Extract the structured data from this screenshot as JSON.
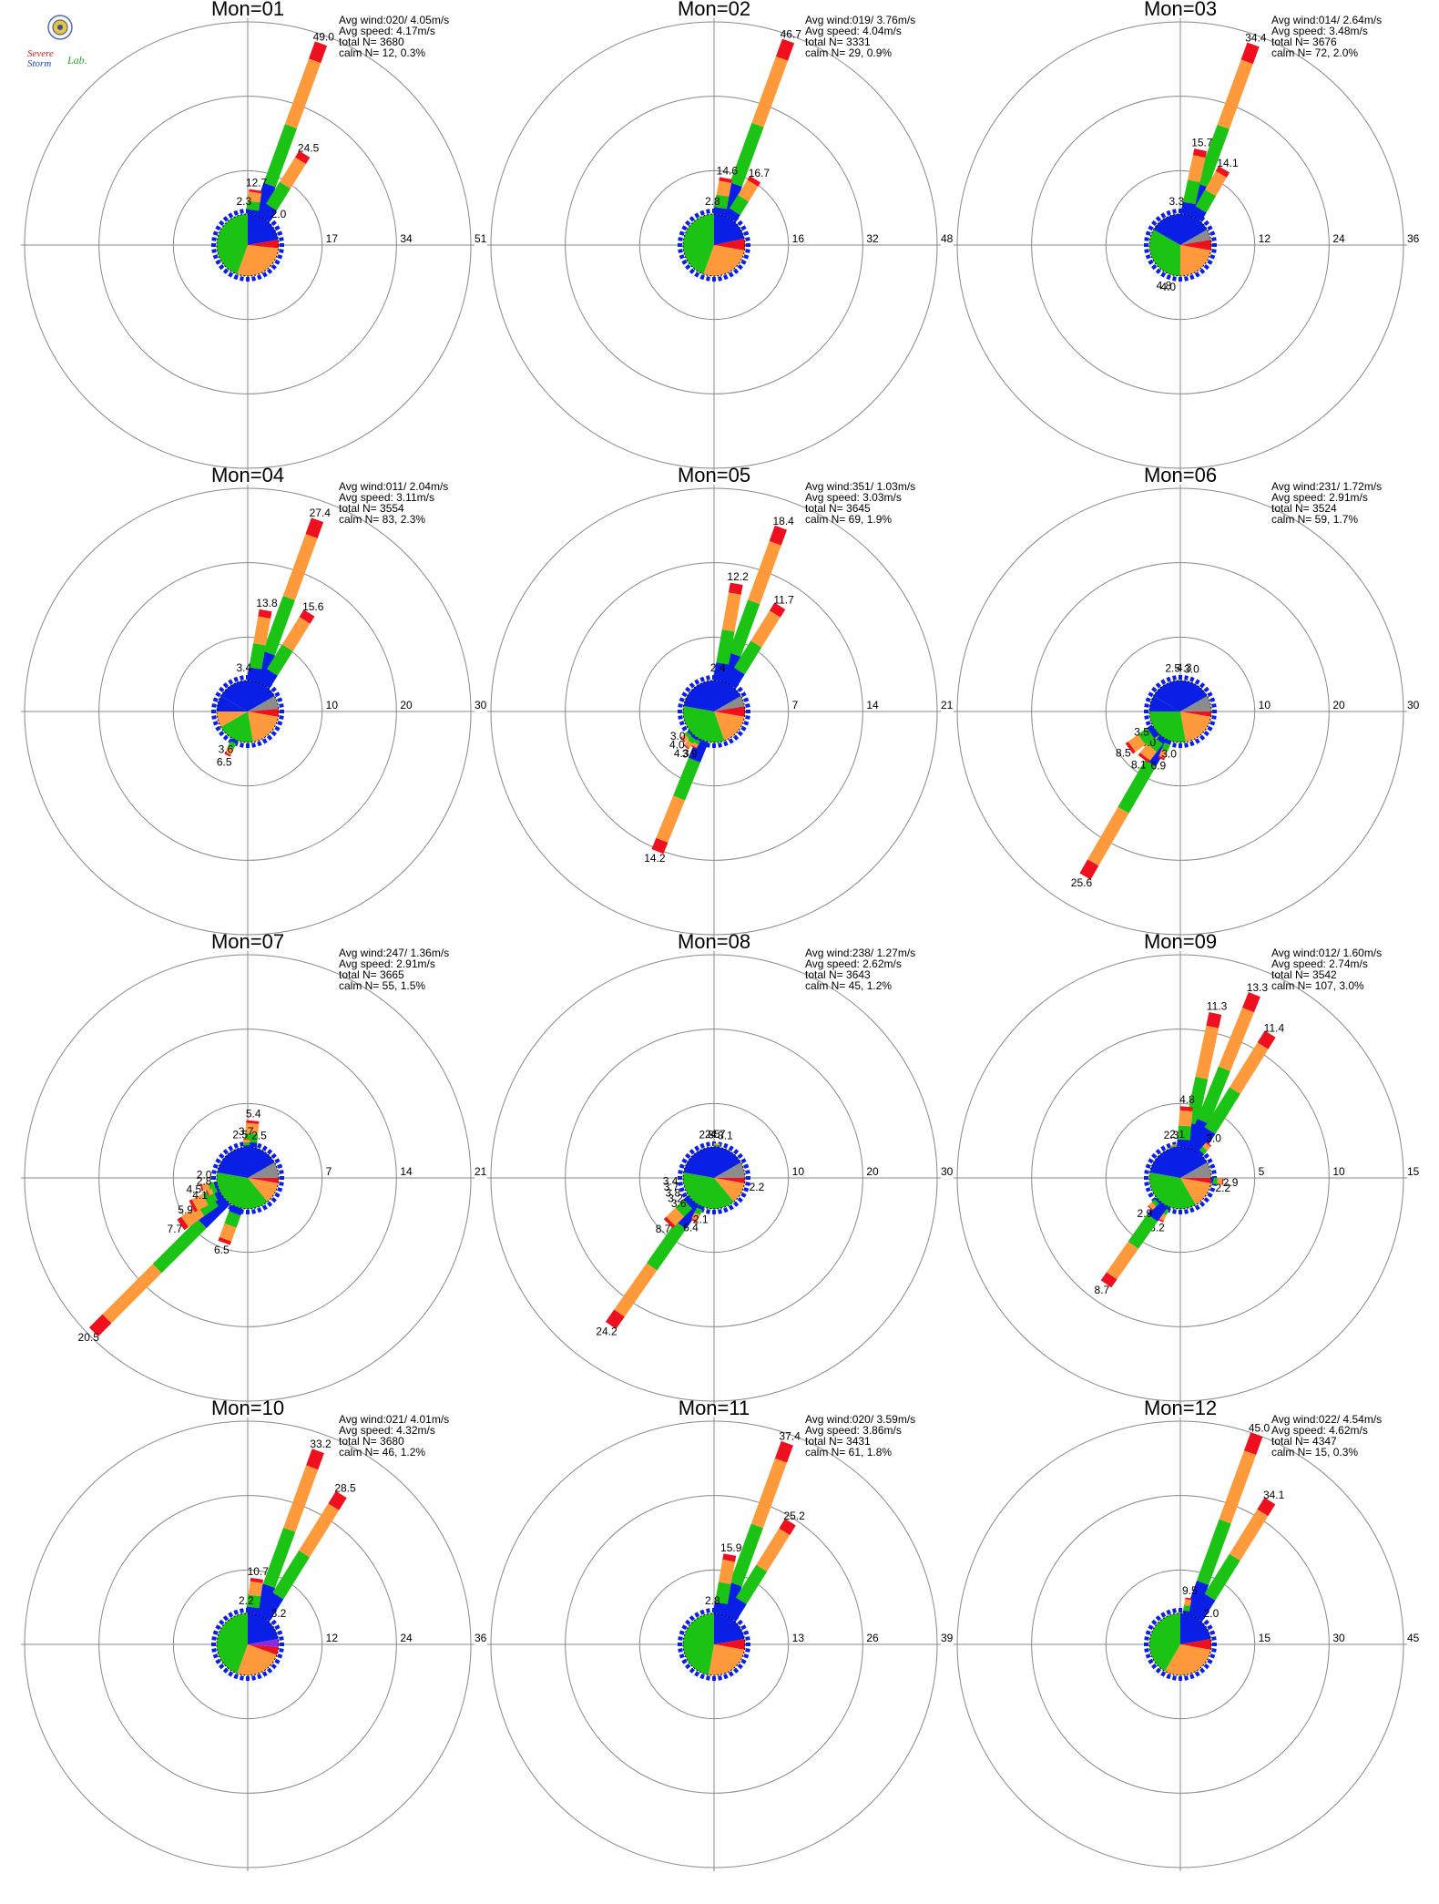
{
  "logo": {
    "line1": "Severe",
    "line2": "Storm",
    "line3": "Lab."
  },
  "colors": {
    "blue": "#0a1fe6",
    "green": "#1bc414",
    "orange": "#ff9a3c",
    "red": "#ee0f1f",
    "gray": "#8c8c8c",
    "purple": "#8a2be2"
  },
  "chart_data": [
    {
      "type": "windrose",
      "title": "Mon=01",
      "info": [
        "Avg wind:020/ 4.05m/s",
        "Avg speed: 4.17m/s",
        "total N=      3680",
        "calm N=     12,   0.3%"
      ],
      "ticks": [
        "17",
        "34",
        "51"
      ],
      "rmax": 51,
      "petals": [
        {
          "dir": 20,
          "v": 49.0,
          "label": "49.0"
        },
        {
          "dir": 32,
          "v": 24.5,
          "label": "24.5"
        },
        {
          "dir": 8,
          "v": 12.7,
          "label": "12.7"
        },
        {
          "dir": 355,
          "v": 2.3,
          "label": "2.3"
        },
        {
          "dir": 45,
          "v": 2.0,
          "label": "2.0"
        }
      ],
      "pie": [
        {
          "from": 0,
          "to": 80,
          "color": "blue"
        },
        {
          "from": 80,
          "to": 96,
          "color": "red"
        },
        {
          "from": 96,
          "to": 200,
          "color": "orange"
        },
        {
          "from": 200,
          "to": 360,
          "color": "green"
        }
      ]
    },
    {
      "type": "windrose",
      "title": "Mon=02",
      "info": [
        "Avg wind:019/ 3.76m/s",
        "Avg speed: 4.04m/s",
        "total N=      3331",
        "calm N=     29,   0.9%"
      ],
      "ticks": [
        "16",
        "32",
        "48"
      ],
      "rmax": 48,
      "petals": [
        {
          "dir": 20,
          "v": 46.7,
          "label": "46.7"
        },
        {
          "dir": 32,
          "v": 16.7,
          "label": "16.7"
        },
        {
          "dir": 10,
          "v": 14.6,
          "label": "14.6"
        },
        {
          "dir": 358,
          "v": 2.8,
          "label": "2.8"
        }
      ],
      "pie": [
        {
          "from": 0,
          "to": 78,
          "color": "blue"
        },
        {
          "from": 78,
          "to": 100,
          "color": "red"
        },
        {
          "from": 100,
          "to": 200,
          "color": "orange"
        },
        {
          "from": 200,
          "to": 360,
          "color": "green"
        }
      ]
    },
    {
      "type": "windrose",
      "title": "Mon=03",
      "info": [
        "Avg wind:014/ 2.64m/s",
        "Avg speed: 3.48m/s",
        "total N=      3676",
        "calm N=     72,   2.0%"
      ],
      "ticks": [
        "12",
        "24",
        "36"
      ],
      "rmax": 36,
      "petals": [
        {
          "dir": 20,
          "v": 34.4,
          "label": "34.4"
        },
        {
          "dir": 12,
          "v": 15.7,
          "label": "15.7"
        },
        {
          "dir": 30,
          "v": 14.1,
          "label": "14.1"
        },
        {
          "dir": 355,
          "v": 3.3,
          "label": "3.3"
        },
        {
          "dir": 202,
          "v": 4.8,
          "label": "4.8"
        },
        {
          "dir": 196,
          "v": 4.0,
          "label": "4.0"
        }
      ],
      "pie": [
        {
          "from": 0,
          "to": 60,
          "color": "blue"
        },
        {
          "from": 60,
          "to": 80,
          "color": "gray"
        },
        {
          "from": 80,
          "to": 100,
          "color": "red"
        },
        {
          "from": 100,
          "to": 180,
          "color": "orange"
        },
        {
          "from": 180,
          "to": 300,
          "color": "green"
        },
        {
          "from": 300,
          "to": 360,
          "color": "blue"
        }
      ]
    },
    {
      "type": "windrose",
      "title": "Mon=04",
      "info": [
        "Avg wind:011/ 2.04m/s",
        "Avg speed: 3.11m/s",
        "total N=      3554",
        "calm N=     83,   2.3%"
      ],
      "ticks": [
        "10",
        "20",
        "30"
      ],
      "rmax": 30,
      "petals": [
        {
          "dir": 20,
          "v": 27.4,
          "label": "27.4"
        },
        {
          "dir": 10,
          "v": 13.8,
          "label": "13.8"
        },
        {
          "dir": 32,
          "v": 15.6,
          "label": "15.6"
        },
        {
          "dir": 355,
          "v": 3.4,
          "label": "3.4"
        },
        {
          "dir": 205,
          "v": 6.5,
          "label": "6.5"
        },
        {
          "dir": 210,
          "v": 3.6,
          "label": "3.6"
        }
      ],
      "pie": [
        {
          "from": 300,
          "to": 420,
          "color": "blue"
        },
        {
          "from": 60,
          "to": 85,
          "color": "gray"
        },
        {
          "from": 85,
          "to": 100,
          "color": "red"
        },
        {
          "from": 100,
          "to": 170,
          "color": "orange"
        },
        {
          "from": 170,
          "to": 240,
          "color": "green"
        },
        {
          "from": 240,
          "to": 270,
          "color": "orange"
        },
        {
          "from": 270,
          "to": 300,
          "color": "blue"
        }
      ]
    },
    {
      "type": "windrose",
      "title": "Mon=05",
      "info": [
        "Avg wind:351/ 1.03m/s",
        "Avg speed: 3.03m/s",
        "total N=      3645",
        "calm N=     69,   1.9%"
      ],
      "ticks": [
        "7",
        "14",
        "21"
      ],
      "rmax": 21,
      "petals": [
        {
          "dir": 20,
          "v": 18.4,
          "label": "18.4"
        },
        {
          "dir": 10,
          "v": 12.2,
          "label": "12.2"
        },
        {
          "dir": 32,
          "v": 11.7,
          "label": "11.7"
        },
        {
          "dir": 5,
          "v": 2.4,
          "label": "2.4"
        },
        {
          "dir": 202,
          "v": 14.2,
          "label": "14.2"
        },
        {
          "dir": 210,
          "v": 3.9,
          "label": "3.9"
        },
        {
          "dir": 218,
          "v": 4.3,
          "label": "4.3"
        },
        {
          "dir": 228,
          "v": 4.0,
          "label": "4.0"
        },
        {
          "dir": 236,
          "v": 3.0,
          "label": "3.0"
        }
      ],
      "pie": [
        {
          "from": 280,
          "to": 420,
          "color": "blue"
        },
        {
          "from": 60,
          "to": 80,
          "color": "gray"
        },
        {
          "from": 80,
          "to": 100,
          "color": "red"
        },
        {
          "from": 100,
          "to": 160,
          "color": "orange"
        },
        {
          "from": 160,
          "to": 280,
          "color": "green"
        }
      ]
    },
    {
      "type": "windrose",
      "title": "Mon=06",
      "info": [
        "Avg wind:231/ 1.72m/s",
        "Avg speed: 2.91m/s",
        "total N=      3524",
        "calm N=     59,   1.7%"
      ],
      "ticks": [
        "10",
        "20",
        "30"
      ],
      "rmax": 30,
      "petals": [
        {
          "dir": 5,
          "v": 4.3,
          "label": "4.3"
        },
        {
          "dir": 350,
          "v": 2.5,
          "label": "2.5"
        },
        {
          "dir": 15,
          "v": 3.0,
          "label": "3.0"
        },
        {
          "dir": 210,
          "v": 25.6,
          "label": "25.6"
        },
        {
          "dir": 202,
          "v": 6.9,
          "label": "6.9"
        },
        {
          "dir": 195,
          "v": 3.0,
          "label": "3.0"
        },
        {
          "dir": 218,
          "v": 8.1,
          "label": "8.1"
        },
        {
          "dir": 226,
          "v": 5.0,
          "label": "5.0"
        },
        {
          "dir": 234,
          "v": 8.5,
          "label": "8.5"
        },
        {
          "dir": 242,
          "v": 3.5,
          "label": "3.5"
        }
      ],
      "pie": [
        {
          "from": 300,
          "to": 420,
          "color": "blue"
        },
        {
          "from": 60,
          "to": 90,
          "color": "gray"
        },
        {
          "from": 90,
          "to": 100,
          "color": "red"
        },
        {
          "from": 100,
          "to": 170,
          "color": "orange"
        },
        {
          "from": 170,
          "to": 270,
          "color": "green"
        },
        {
          "from": 270,
          "to": 300,
          "color": "blue"
        }
      ]
    },
    {
      "type": "windrose",
      "title": "Mon=07",
      "info": [
        "Avg wind:247/ 1.36m/s",
        "Avg speed: 2.91m/s",
        "total N=      3665",
        "calm N=     55,   1.5%"
      ],
      "ticks": [
        "7",
        "14",
        "21"
      ],
      "rmax": 21,
      "petals": [
        {
          "dir": 5,
          "v": 5.4,
          "label": "5.4"
        },
        {
          "dir": 358,
          "v": 3.7,
          "label": "3.7"
        },
        {
          "dir": 350,
          "v": 2.5,
          "label": "2.5"
        },
        {
          "dir": 15,
          "v": 2.5,
          "label": "2.5"
        },
        {
          "dir": 225,
          "v": 20.5,
          "label": "20.5"
        },
        {
          "dir": 235,
          "v": 7.7,
          "label": "7.7"
        },
        {
          "dir": 200,
          "v": 6.5,
          "label": "6.5"
        },
        {
          "dir": 243,
          "v": 5.9,
          "label": "5.9"
        },
        {
          "dir": 250,
          "v": 4.1,
          "label": "4.1"
        },
        {
          "dir": 258,
          "v": 4.5,
          "label": "4.5"
        },
        {
          "dir": 266,
          "v": 2.8,
          "label": "2.8"
        },
        {
          "dir": 274,
          "v": 2.0,
          "label": "2.0"
        }
      ],
      "pie": [
        {
          "from": 280,
          "to": 420,
          "color": "blue"
        },
        {
          "from": 60,
          "to": 90,
          "color": "gray"
        },
        {
          "from": 90,
          "to": 100,
          "color": "red"
        },
        {
          "from": 100,
          "to": 140,
          "color": "orange"
        },
        {
          "from": 140,
          "to": 280,
          "color": "green"
        }
      ]
    },
    {
      "type": "windrose",
      "title": "Mon=08",
      "info": [
        "Avg wind:238/ 1.27m/s",
        "Avg speed: 2.62m/s",
        "total N=      3643",
        "calm N=     45,   1.2%"
      ],
      "ticks": [
        "10",
        "20",
        "30"
      ],
      "rmax": 30,
      "petals": [
        {
          "dir": 5,
          "v": 4.7,
          "label": "4.7"
        },
        {
          "dir": 358,
          "v": 2.5,
          "label": "2.5"
        },
        {
          "dir": 350,
          "v": 2.8,
          "label": "2.8"
        },
        {
          "dir": 15,
          "v": 3.1,
          "label": "3.1"
        },
        {
          "dir": 102,
          "v": 2.2,
          "label": "2.2"
        },
        {
          "dir": 215,
          "v": 24.2,
          "label": "24.2"
        },
        {
          "dir": 205,
          "v": 6.4,
          "label": "6.4"
        },
        {
          "dir": 198,
          "v": 2.1,
          "label": "2.1"
        },
        {
          "dir": 225,
          "v": 8.7,
          "label": "8.7"
        },
        {
          "dir": 234,
          "v": 3.6,
          "label": "3.6"
        },
        {
          "dir": 242,
          "v": 3.2,
          "label": "3.2"
        },
        {
          "dir": 250,
          "v": 3.8,
          "label": "3.8"
        },
        {
          "dir": 258,
          "v": 3.7,
          "label": "3.7"
        },
        {
          "dir": 266,
          "v": 3.4,
          "label": "3.4"
        }
      ],
      "pie": [
        {
          "from": 280,
          "to": 420,
          "color": "blue"
        },
        {
          "from": 60,
          "to": 90,
          "color": "gray"
        },
        {
          "from": 90,
          "to": 100,
          "color": "red"
        },
        {
          "from": 100,
          "to": 140,
          "color": "orange"
        },
        {
          "from": 140,
          "to": 280,
          "color": "green"
        }
      ]
    },
    {
      "type": "windrose",
      "title": "Mon=09",
      "info": [
        "Avg wind:012/ 1.60m/s",
        "Avg speed: 2.74m/s",
        "total N=      3542",
        "calm N=    107,   3.0%"
      ],
      "ticks": [
        "5",
        "10",
        "15"
      ],
      "rmax": 15,
      "petals": [
        {
          "dir": 12,
          "v": 11.3,
          "label": "11.3"
        },
        {
          "dir": 22,
          "v": 13.3,
          "label": "13.3"
        },
        {
          "dir": 32,
          "v": 11.4,
          "label": "11.4"
        },
        {
          "dir": 5,
          "v": 4.8,
          "label": "4.8"
        },
        {
          "dir": 348,
          "v": 2.3,
          "label": "2.3"
        },
        {
          "dir": 356,
          "v": 2.1,
          "label": "2.1"
        },
        {
          "dir": 40,
          "v": 3.0,
          "label": "3.0"
        },
        {
          "dir": 95,
          "v": 2.9,
          "label": "2.9"
        },
        {
          "dir": 103,
          "v": 2.2,
          "label": "2.2"
        },
        {
          "dir": 205,
          "v": 3.2,
          "label": "3.2"
        },
        {
          "dir": 215,
          "v": 8.7,
          "label": "8.7"
        },
        {
          "dir": 225,
          "v": 2.9,
          "label": "2.9"
        }
      ],
      "pie": [
        {
          "from": 280,
          "to": 420,
          "color": "blue"
        },
        {
          "from": 60,
          "to": 90,
          "color": "gray"
        },
        {
          "from": 90,
          "to": 100,
          "color": "red"
        },
        {
          "from": 100,
          "to": 150,
          "color": "orange"
        },
        {
          "from": 150,
          "to": 280,
          "color": "green"
        }
      ]
    },
    {
      "type": "windrose",
      "title": "Mon=10",
      "info": [
        "Avg wind:021/ 4.01m/s",
        "Avg speed: 4.32m/s",
        "total N=      3680",
        "calm N=     46,   1.2%"
      ],
      "ticks": [
        "12",
        "24",
        "36"
      ],
      "rmax": 36,
      "petals": [
        {
          "dir": 20,
          "v": 33.2,
          "label": "33.2"
        },
        {
          "dir": 32,
          "v": 28.5,
          "label": "28.5"
        },
        {
          "dir": 8,
          "v": 10.7,
          "label": "10.7"
        },
        {
          "dir": 358,
          "v": 2.2,
          "label": "2.2"
        },
        {
          "dir": 45,
          "v": 3.2,
          "label": "3.2"
        }
      ],
      "pie": [
        {
          "from": 0,
          "to": 80,
          "color": "blue"
        },
        {
          "from": 80,
          "to": 95,
          "color": "purple"
        },
        {
          "from": 95,
          "to": 110,
          "color": "red"
        },
        {
          "from": 110,
          "to": 200,
          "color": "orange"
        },
        {
          "from": 200,
          "to": 360,
          "color": "green"
        }
      ]
    },
    {
      "type": "windrose",
      "title": "Mon=11",
      "info": [
        "Avg wind:020/ 3.59m/s",
        "Avg speed: 3.86m/s",
        "total N=      3431",
        "calm N=     61,   1.8%"
      ],
      "ticks": [
        "13",
        "26",
        "39"
      ],
      "rmax": 39,
      "petals": [
        {
          "dir": 20,
          "v": 37.4,
          "label": "37.4"
        },
        {
          "dir": 32,
          "v": 25.2,
          "label": "25.2"
        },
        {
          "dir": 10,
          "v": 15.9,
          "label": "15.9"
        },
        {
          "dir": 358,
          "v": 2.8,
          "label": "2.8"
        }
      ],
      "pie": [
        {
          "from": 0,
          "to": 80,
          "color": "blue"
        },
        {
          "from": 80,
          "to": 100,
          "color": "red"
        },
        {
          "from": 100,
          "to": 190,
          "color": "orange"
        },
        {
          "from": 190,
          "to": 360,
          "color": "green"
        }
      ]
    },
    {
      "type": "windrose",
      "title": "Mon=12",
      "info": [
        "Avg wind:022/ 4.54m/s",
        "Avg speed: 4.62m/s",
        "total N=      4347",
        "calm N=     15,   0.3%"
      ],
      "ticks": [
        "15",
        "30",
        "45"
      ],
      "rmax": 45,
      "petals": [
        {
          "dir": 20,
          "v": 45.0,
          "label": "45.0"
        },
        {
          "dir": 32,
          "v": 34.1,
          "label": "34.1"
        },
        {
          "dir": 10,
          "v": 9.5,
          "label": "9.5"
        },
        {
          "dir": 45,
          "v": 2.0,
          "label": "2.0"
        }
      ],
      "pie": [
        {
          "from": 0,
          "to": 80,
          "color": "blue"
        },
        {
          "from": 80,
          "to": 100,
          "color": "red"
        },
        {
          "from": 100,
          "to": 210,
          "color": "orange"
        },
        {
          "from": 210,
          "to": 360,
          "color": "green"
        }
      ]
    }
  ]
}
